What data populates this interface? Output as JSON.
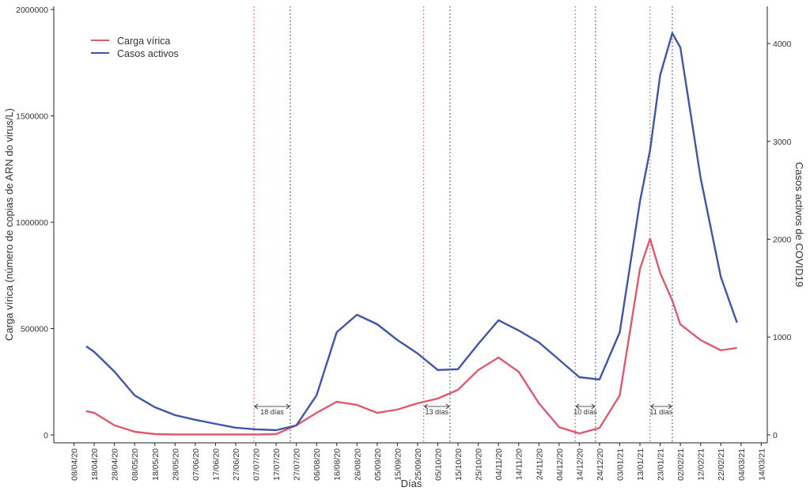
{
  "chart_data": {
    "type": "line",
    "x_label": "Días",
    "y_label": "Carga vírica (número de copias de ARN do virus/L)",
    "y2_label": "Casos activos de COVID19",
    "x": [
      "2020-04-14",
      "2020-04-18",
      "2020-04-28",
      "2020-05-08",
      "2020-05-18",
      "2020-05-28",
      "2020-06-07",
      "2020-06-17",
      "2020-06-27",
      "2020-07-07",
      "2020-07-17",
      "2020-07-27",
      "2020-08-06",
      "2020-08-16",
      "2020-08-26",
      "2020-09-05",
      "2020-09-15",
      "2020-09-25",
      "2020-10-05",
      "2020-10-15",
      "2020-10-25",
      "2020-11-04",
      "2020-11-14",
      "2020-11-24",
      "2020-12-04",
      "2020-12-14",
      "2020-12-24",
      "2021-01-03",
      "2021-01-13",
      "2021-01-18",
      "2021-01-23",
      "2021-01-29",
      "2021-02-02",
      "2021-02-12",
      "2021-02-22",
      "2021-03-02"
    ],
    "series": [
      {
        "name": "Carga vírica",
        "color": "#e05a6e",
        "axis": "y",
        "values": [
          112000,
          104000,
          45000,
          15000,
          4000,
          2000,
          2000,
          2000,
          2000,
          2000,
          4000,
          45000,
          104000,
          156000,
          141000,
          104000,
          119000,
          149000,
          171000,
          212000,
          305000,
          364000,
          297000,
          149000,
          37000,
          7000,
          33000,
          186000,
          780000,
          922000,
          762000,
          632000,
          520000,
          446000,
          398000,
          409000
        ]
      },
      {
        "name": "Casos activos",
        "color": "#3f56a8",
        "axis": "y2",
        "values": [
          905,
          848,
          646,
          404,
          283,
          202,
          154,
          113,
          73,
          57,
          48,
          97,
          404,
          1050,
          1228,
          1131,
          970,
          832,
          663,
          671,
          929,
          1172,
          1067,
          945,
          768,
          590,
          566,
          1050,
          2384,
          2909,
          3677,
          4105,
          3960,
          2626,
          1616,
          1147
        ]
      }
    ],
    "annotations": [
      {
        "start": "2020-07-06",
        "end": "2020-07-24",
        "label": "18 días"
      },
      {
        "start": "2020-09-28",
        "end": "2020-10-11",
        "label": "13 días"
      },
      {
        "start": "2020-12-12",
        "end": "2020-12-22",
        "label": "10 días"
      },
      {
        "start": "2021-01-18",
        "end": "2021-01-29",
        "label": "11 días"
      }
    ],
    "xlim": [
      "2020-03-29",
      "2021-03-17"
    ],
    "xticks": [
      {
        "value": "2020-04-08",
        "label": "08/04/20"
      },
      {
        "value": "2020-04-18",
        "label": "18/04/20"
      },
      {
        "value": "2020-04-28",
        "label": "28/04/20"
      },
      {
        "value": "2020-05-08",
        "label": "08/05/20"
      },
      {
        "value": "2020-05-18",
        "label": "18/05/20"
      },
      {
        "value": "2020-05-28",
        "label": "28/05/20"
      },
      {
        "value": "2020-06-07",
        "label": "07/06/20"
      },
      {
        "value": "2020-06-17",
        "label": "17/06/20"
      },
      {
        "value": "2020-06-27",
        "label": "27/06/20"
      },
      {
        "value": "2020-07-07",
        "label": "07/07/20"
      },
      {
        "value": "2020-07-17",
        "label": "17/07/20"
      },
      {
        "value": "2020-07-27",
        "label": "27/07/20"
      },
      {
        "value": "2020-08-06",
        "label": "06/08/20"
      },
      {
        "value": "2020-08-16",
        "label": "16/08/20"
      },
      {
        "value": "2020-08-26",
        "label": "26/08/20"
      },
      {
        "value": "2020-09-05",
        "label": "05/09/20"
      },
      {
        "value": "2020-09-15",
        "label": "15/09/20"
      },
      {
        "value": "2020-09-25",
        "label": "25/09/20"
      },
      {
        "value": "2020-10-05",
        "label": "05/10/20"
      },
      {
        "value": "2020-10-15",
        "label": "15/10/20"
      },
      {
        "value": "2020-10-25",
        "label": "25/10/20"
      },
      {
        "value": "2020-11-04",
        "label": "04/11/20"
      },
      {
        "value": "2020-11-14",
        "label": "14/11/20"
      },
      {
        "value": "2020-11-24",
        "label": "24/11/20"
      },
      {
        "value": "2020-12-04",
        "label": "04/12/20"
      },
      {
        "value": "2020-12-14",
        "label": "14/12/20"
      },
      {
        "value": "2020-12-24",
        "label": "24/12/20"
      },
      {
        "value": "2021-01-03",
        "label": "03/01/21"
      },
      {
        "value": "2021-01-13",
        "label": "13/01/21"
      },
      {
        "value": "2021-01-23",
        "label": "23/01/21"
      },
      {
        "value": "2021-02-02",
        "label": "02/02/21"
      },
      {
        "value": "2021-02-12",
        "label": "12/02/21"
      },
      {
        "value": "2021-02-22",
        "label": "22/02/21"
      },
      {
        "value": "2021-03-04",
        "label": "04/03/21"
      },
      {
        "value": "2021-03-14",
        "label": "14/03/21"
      }
    ],
    "ylim": [
      -37000,
      2015000
    ],
    "yticks": [
      0,
      500000,
      1000000,
      1500000,
      2000000
    ],
    "y2lim": [
      -81,
      4380
    ],
    "y2ticks": [
      0,
      1000,
      2000,
      3000,
      4000
    ],
    "legend": "top-left",
    "grid": false
  }
}
